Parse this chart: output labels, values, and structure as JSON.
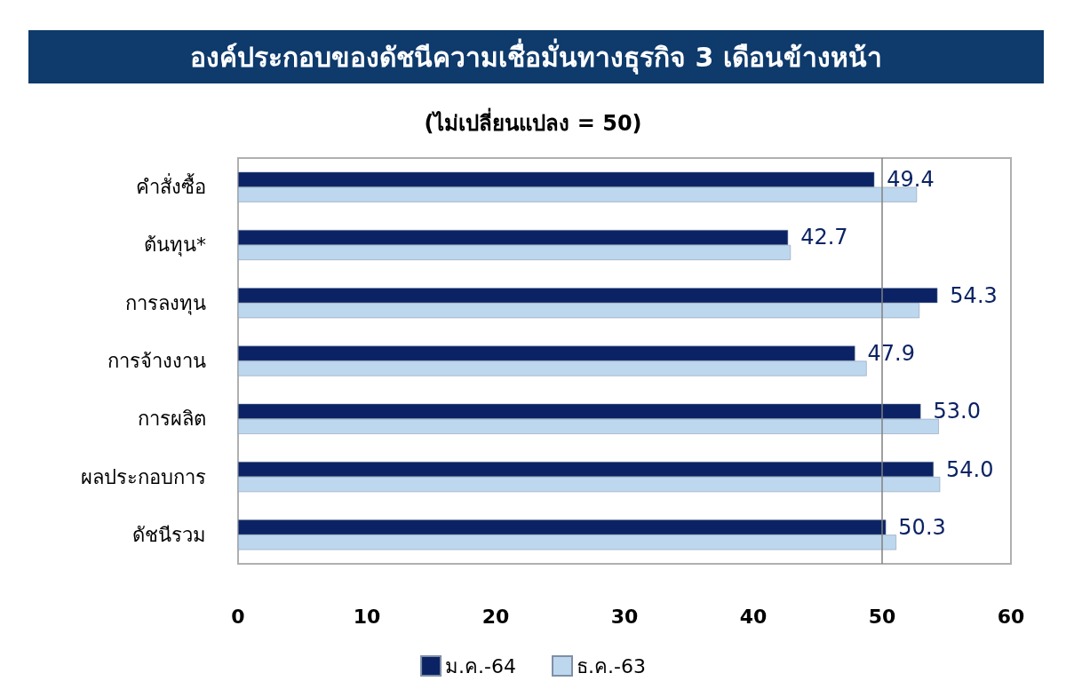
{
  "chart_data": {
    "type": "bar",
    "orientation": "horizontal",
    "title": "องค์ประกอบของดัชนีความเชื่อมั่นทางธุรกิจ 3 เดือนข้างหน้า",
    "subtitle": "(ไม่เปลี่ยนแปลง = 50)",
    "categories": [
      "คำสั่งซื้อ",
      "ต้นทุน*",
      "การลงทุน",
      "การจ้างงาน",
      "การผลิต",
      "ผลประกอบการ",
      "ดัชนีรวม"
    ],
    "series": [
      {
        "name": "ม.ค.-64",
        "color": "#0b2364",
        "values": [
          49.4,
          42.7,
          54.3,
          47.9,
          53.0,
          54.0,
          50.3
        ],
        "value_labels": [
          "49.4",
          "42.7",
          "54.3",
          "47.9",
          "53.0",
          "54.0",
          "50.3"
        ]
      },
      {
        "name": "ธ.ค.-63",
        "color": "#bdd7ee",
        "values": [
          52.7,
          42.9,
          52.9,
          48.8,
          54.4,
          54.5,
          51.1
        ]
      }
    ],
    "xlim": [
      0,
      60
    ],
    "xticks": [
      0,
      10,
      20,
      30,
      40,
      50,
      60
    ],
    "ref_lines": [
      {
        "axis": "x",
        "value": 50,
        "color": "#808080"
      }
    ],
    "grid": false,
    "legend": "bottom"
  }
}
